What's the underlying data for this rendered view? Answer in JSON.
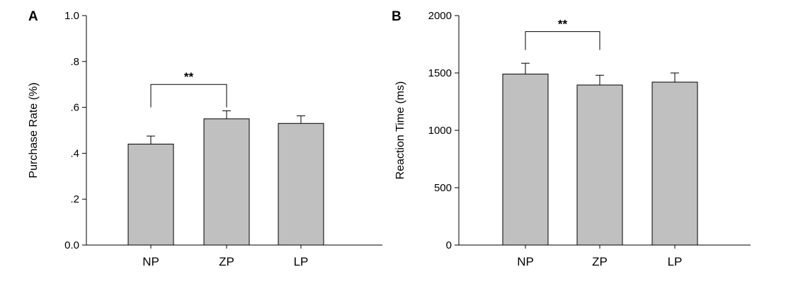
{
  "colors": {
    "bar_fill": "#c0c0c0",
    "stroke": "#000000",
    "background": "#ffffff"
  },
  "chart_data": [
    {
      "panel_label": "A",
      "type": "bar",
      "title": "",
      "xlabel": "",
      "ylabel": "Purchase Rate (%)",
      "categories": [
        "NP",
        "ZP",
        "LP"
      ],
      "values": [
        0.44,
        0.55,
        0.53
      ],
      "errors": [
        0.035,
        0.035,
        0.033
      ],
      "ylim": [
        0,
        1.0
      ],
      "yticks": [
        0,
        0.2,
        0.4,
        0.6,
        0.8,
        1.0
      ],
      "ytick_labels": [
        "0.0",
        ".2",
        ".4",
        ".6",
        ".8",
        "1.0"
      ],
      "grid": false,
      "significance": {
        "from": 0,
        "to": 1,
        "label": "**",
        "bracket_y": 0.7,
        "leg_bottom": 0.6
      }
    },
    {
      "panel_label": "B",
      "type": "bar",
      "title": "",
      "xlabel": "",
      "ylabel": "Reaction Time (ms)",
      "categories": [
        "NP",
        "ZP",
        "LP"
      ],
      "values": [
        1490,
        1395,
        1420
      ],
      "errors": [
        95,
        85,
        80
      ],
      "ylim": [
        0,
        2000
      ],
      "yticks": [
        0,
        500,
        1000,
        1500,
        2000
      ],
      "ytick_labels": [
        "0",
        "500",
        "1000",
        "1500",
        "2000"
      ],
      "grid": false,
      "significance": {
        "from": 0,
        "to": 1,
        "label": "**",
        "bracket_y": 1860,
        "leg_bottom": 1700
      }
    }
  ]
}
